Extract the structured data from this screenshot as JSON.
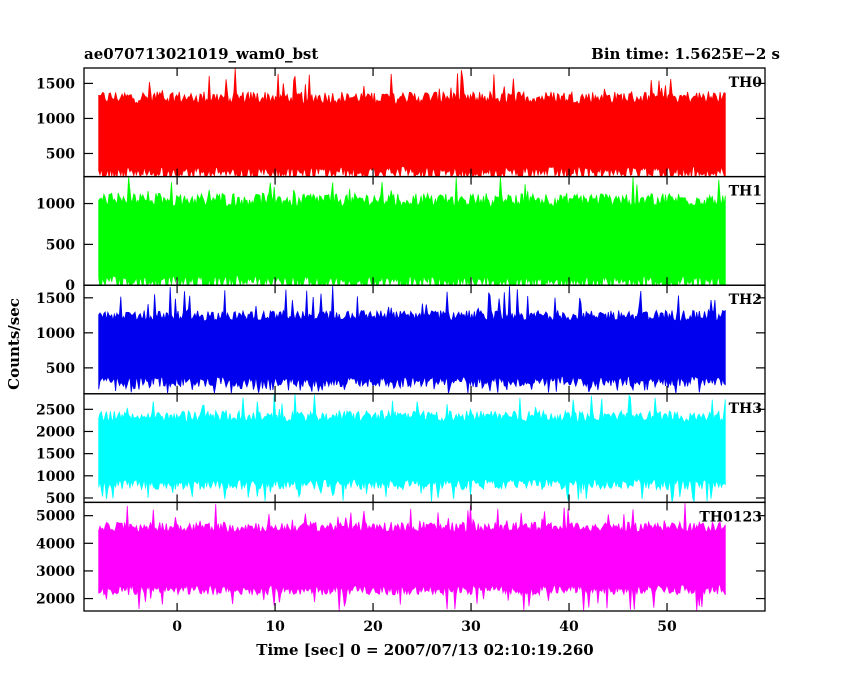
{
  "header": {
    "object": "ae070713021019_wam0_bst",
    "bin_time": "Bin time: 1.5625E−2 s"
  },
  "chart_data": {
    "type": "line",
    "title": "ae070713021019_wam0_bst",
    "subtitle": "Bin time: 1.5625E−2 s",
    "xlabel": "Time [sec] 0 = 2007/07/13 02:10:19.260",
    "ylabel": "Counts/sec",
    "xlim": [
      -9.5,
      60
    ],
    "x_data_range": [
      -8,
      56
    ],
    "x_ticks": [
      0,
      10,
      20,
      30,
      40,
      50
    ],
    "x_tick_labels": [
      "0",
      "10",
      "20",
      "30",
      "40",
      "50"
    ],
    "legend": "none",
    "grid": false,
    "panels": [
      {
        "name": "TH0",
        "color": "#ff0000",
        "ylim": [
          170,
          1720
        ],
        "yticks": [
          500,
          1000,
          1500
        ],
        "typical_band": [
          220,
          1300
        ],
        "peak_max": 1720
      },
      {
        "name": "TH1",
        "color": "#00ff00",
        "ylim": [
          0,
          1330
        ],
        "yticks": [
          0,
          500,
          1000
        ],
        "typical_band": [
          30,
          1050
        ],
        "peak_max": 1330
      },
      {
        "name": "TH2",
        "color": "#0000ee",
        "ylim": [
          130,
          1680
        ],
        "yticks": [
          500,
          1000,
          1500
        ],
        "typical_band": [
          300,
          1250
        ],
        "peak_max": 1680
      },
      {
        "name": "TH3",
        "color": "#00ffff",
        "ylim": [
          400,
          2850
        ],
        "yticks": [
          500,
          1000,
          1500,
          2000,
          2500
        ],
        "typical_band": [
          800,
          2350
        ],
        "peak_max": 2850
      },
      {
        "name": "TH0123",
        "color": "#ff00ff",
        "ylim": [
          1550,
          5480
        ],
        "yticks": [
          2000,
          3000,
          4000,
          5000
        ],
        "typical_band": [
          2300,
          4600
        ],
        "peak_max": 5480
      }
    ]
  }
}
